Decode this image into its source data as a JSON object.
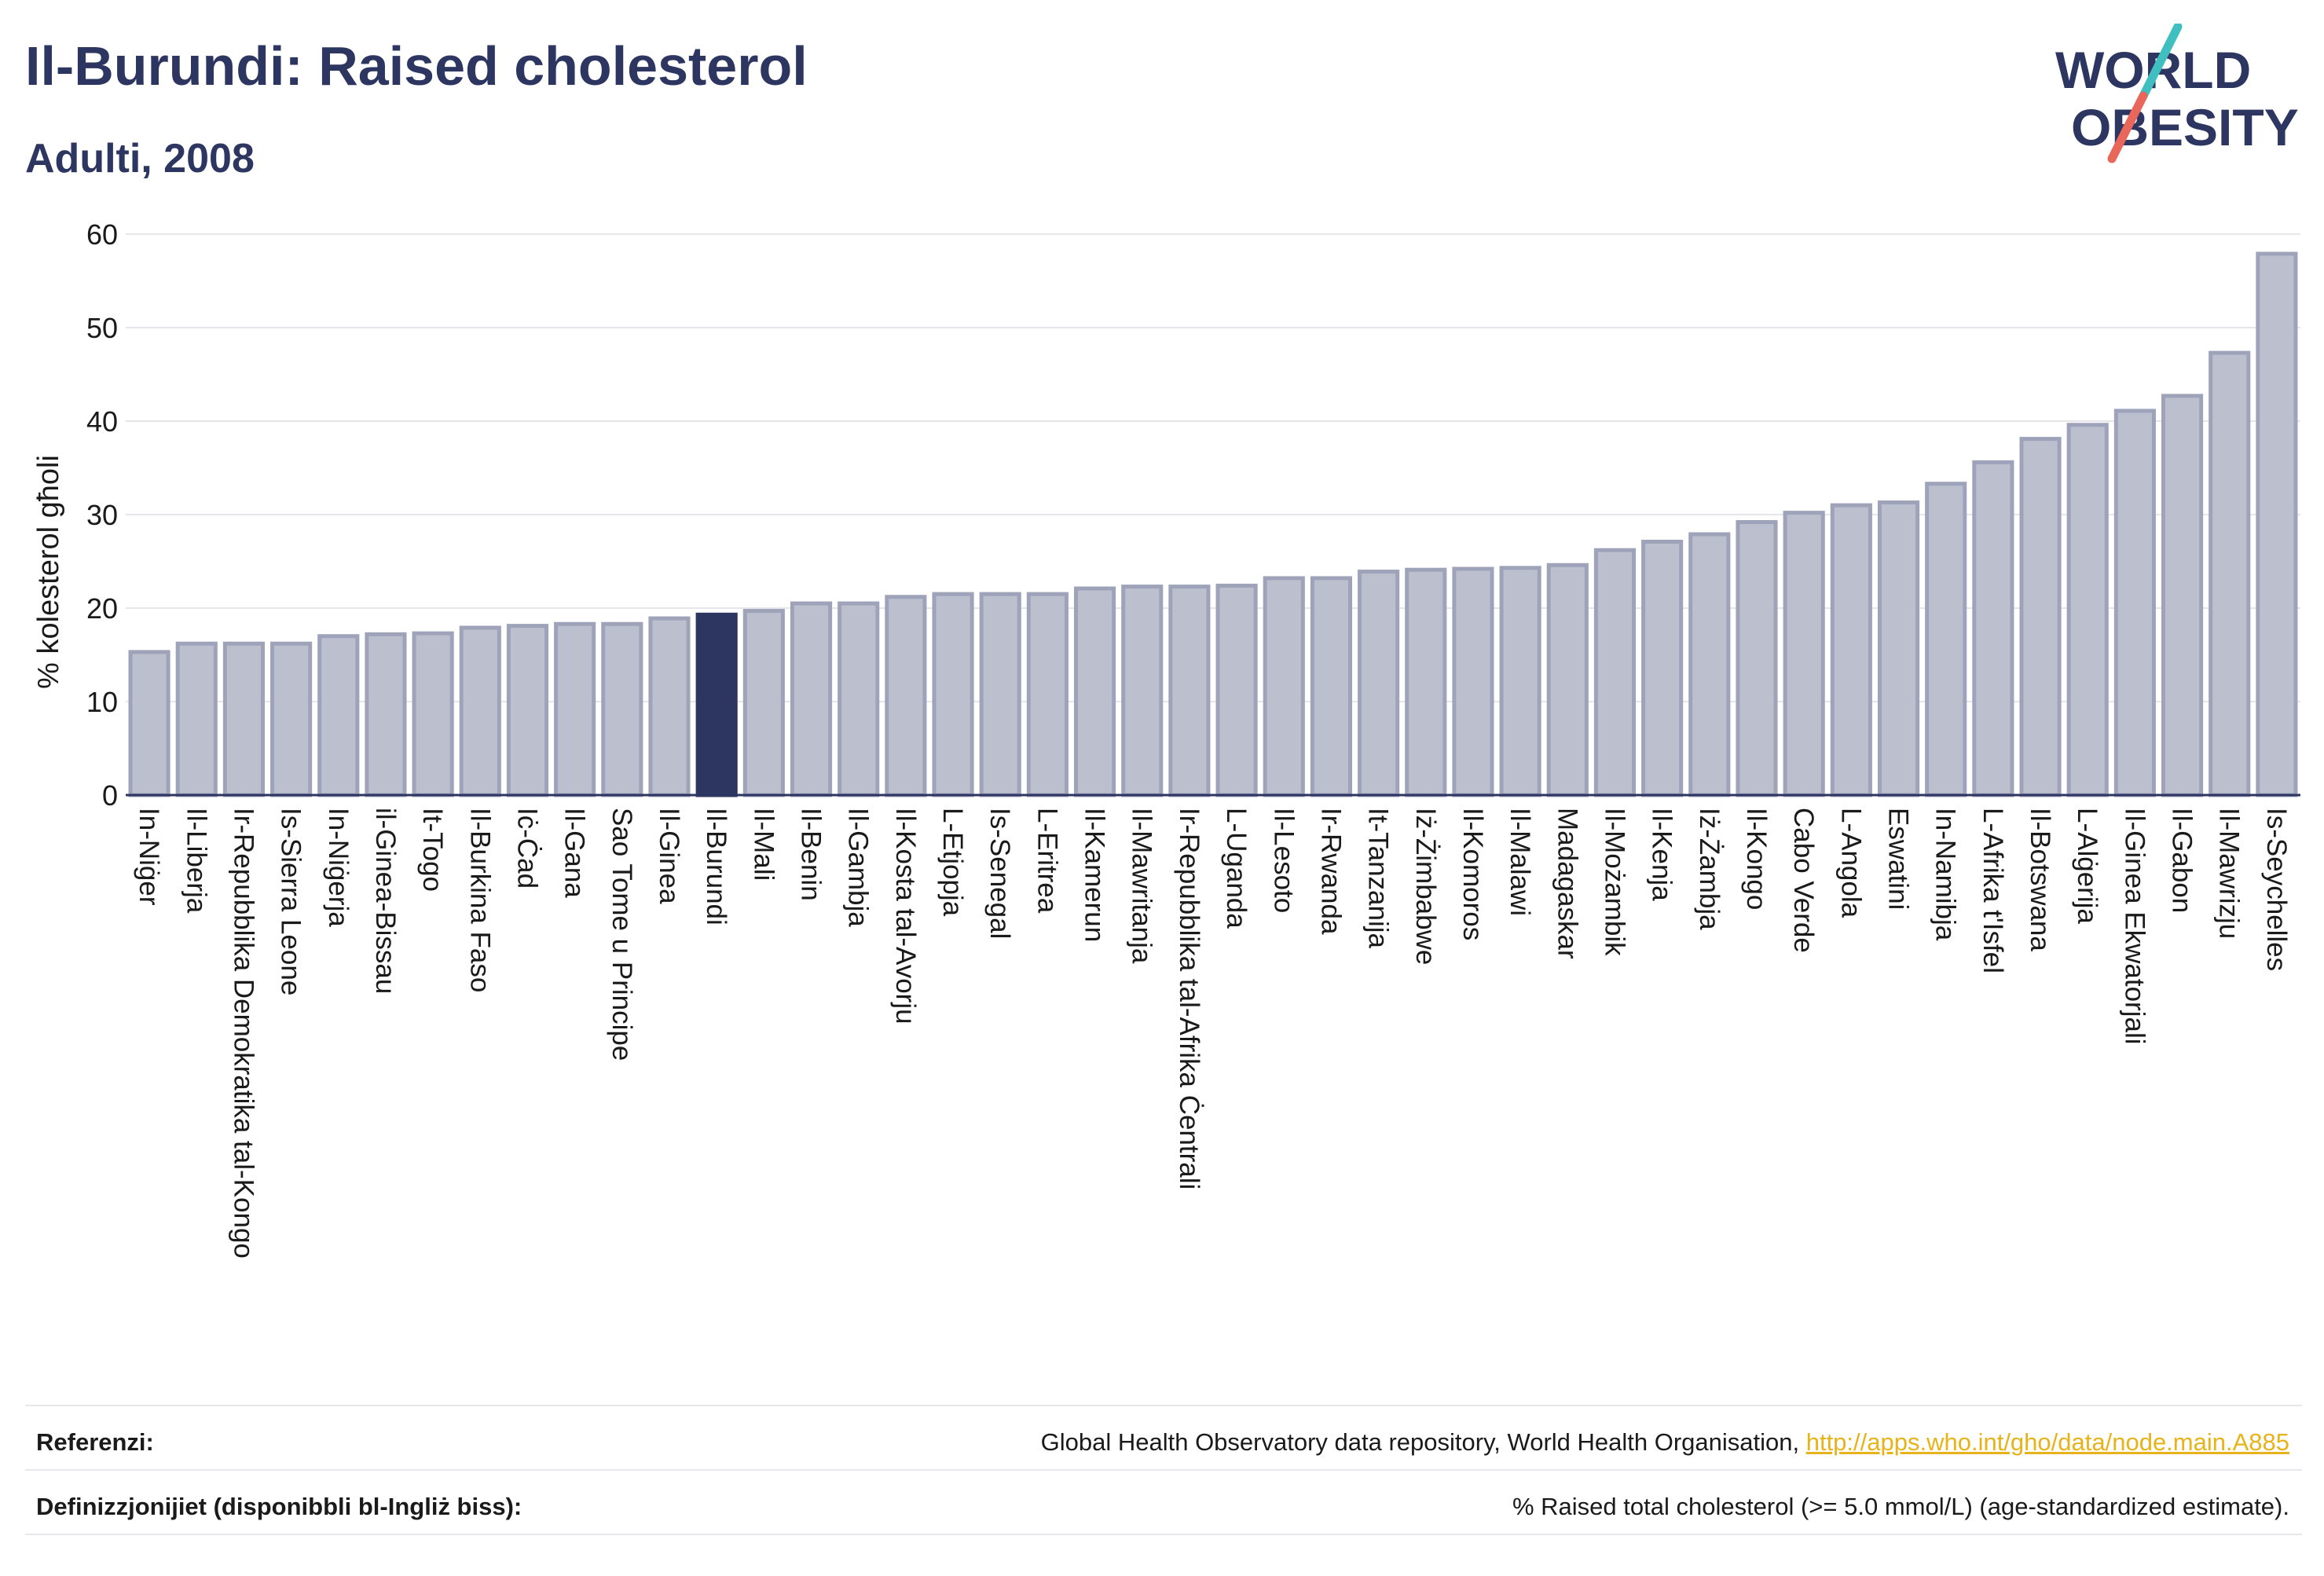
{
  "header": {
    "title": "Il-Burundi: Raised cholesterol",
    "subtitle": "Adulti, 2008"
  },
  "logo": {
    "line1": "WORLD",
    "line2": "OBESITY",
    "colors": {
      "text": "#2d3561",
      "slash_teal": "#3fbfbf",
      "slash_coral": "#e8665a"
    }
  },
  "colors": {
    "bar_default": "#bcc0ce",
    "bar_default_stroke": "#9ea3ba",
    "bar_highlight": "#2d3561",
    "grid": "#e6e6ea"
  },
  "chart_data": {
    "type": "bar",
    "ylabel": "% kolesterol għoli",
    "ylim": [
      0,
      60
    ],
    "yticks": [
      0,
      10,
      20,
      30,
      40,
      50,
      60
    ],
    "highlight": "Il-Burundi",
    "categories": [
      "In-Niġer",
      "Il-Liberja",
      "Ir-Repubblika Demokratika tal-Kongo",
      "Is-Sierra Leone",
      "In-Niġerja",
      "il-Ginea-Bissau",
      "It-Togo",
      "Il-Burkina Faso",
      "Iċ-Ċad",
      "Il-Gana",
      "Sao Tome u Principe",
      "Il-Ginea",
      "Il-Burundi",
      "Il-Mali",
      "Il-Benin",
      "Il-Gambja",
      "Il-Kosta tal-Avorju",
      "L-Etjopja",
      "Is-Senegal",
      "L-Eritrea",
      "Il-Kamerun",
      "Il-Mawritanja",
      "Ir-Repubblika tal-Afrika Ċentrali",
      "L-Uganda",
      "Il-Lesoto",
      "Ir-Rwanda",
      "It-Tanzanija",
      "Iż-Żimbabwe",
      "Il-Komoros",
      "Il-Malawi",
      "Madagaskar",
      "Il-Możambik",
      "Il-Kenja",
      "Iż-Żambja",
      "Il-Kongo",
      "Cabo Verde",
      "L-Angola",
      "Eswatini",
      "In-Namibja",
      "L-Afrika t'Isfel",
      "Il-Botswana",
      "L-Alġerija",
      "Il-Ginea Ekwatorjali",
      "Il-Gabon",
      "Il-Mawrizju",
      "Is-Seychelles"
    ],
    "values": [
      15.3,
      16.2,
      16.2,
      16.2,
      17.0,
      17.2,
      17.3,
      17.9,
      18.1,
      18.3,
      18.3,
      18.9,
      19.3,
      19.7,
      20.5,
      20.5,
      21.2,
      21.5,
      21.5,
      21.5,
      22.1,
      22.3,
      22.3,
      22.4,
      23.2,
      23.2,
      23.9,
      24.1,
      24.2,
      24.3,
      24.6,
      26.2,
      27.1,
      27.9,
      29.2,
      30.2,
      31.0,
      31.3,
      33.3,
      35.6,
      38.1,
      39.6,
      41.1,
      42.7,
      47.3,
      57.9
    ]
  },
  "footer": {
    "references_label": "Referenzi:",
    "references_text": "Global Health Observatory data repository, World Health Organisation, ",
    "references_link": "http://apps.who.int/gho/data/node.main.A885",
    "definitions_label": "Definizzjonijiet (disponibbli bl-Ingliż biss):",
    "definitions_text": "% Raised total cholesterol (>= 5.0 mmol/L) (age-standardized estimate)."
  }
}
